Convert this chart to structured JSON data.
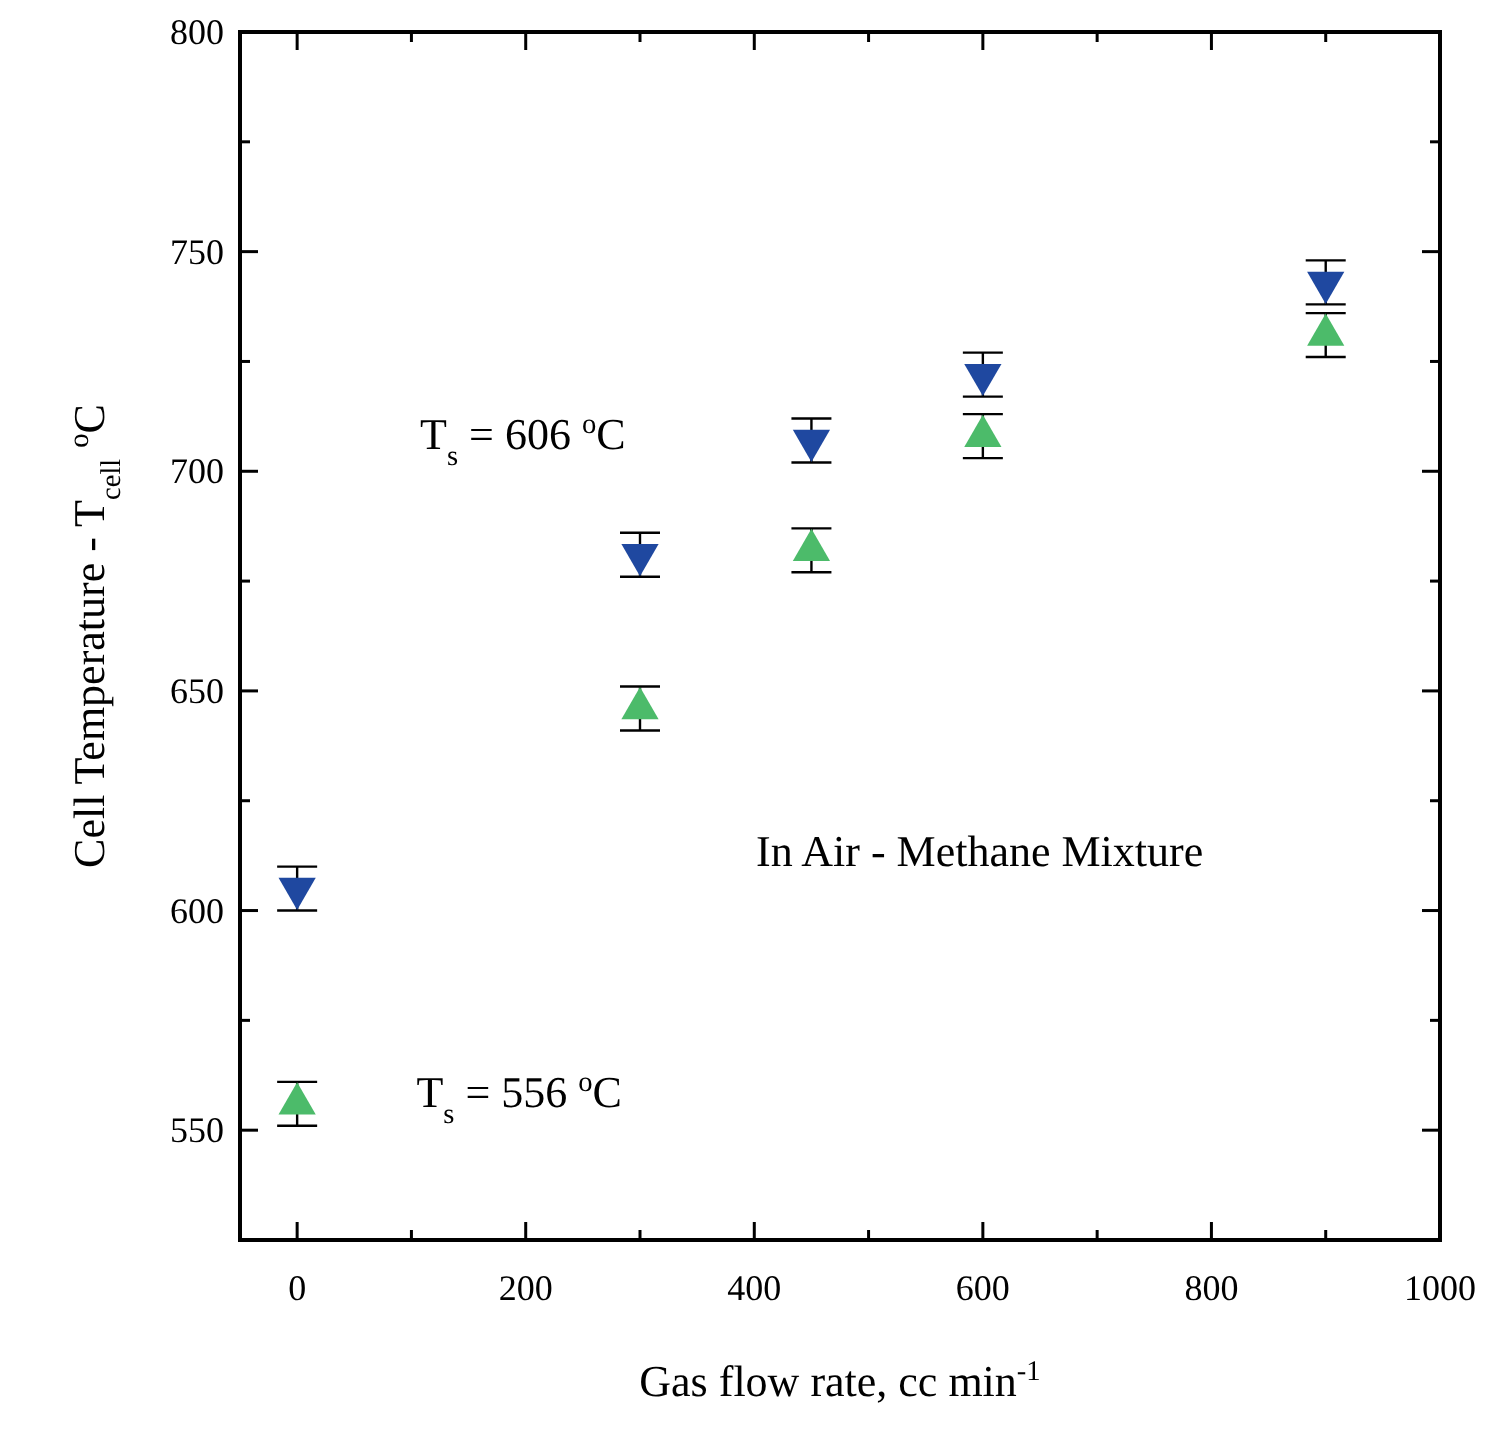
{
  "chart_data": {
    "type": "scatter",
    "xlabel": "Gas flow rate, cc min$^{-1}$",
    "ylabel": "Cell Temperature - T$_{cell}$ $^{o}$C",
    "x": [
      0,
      300,
      450,
      600,
      900
    ],
    "series": [
      {
        "color": "#1f48a0",
        "marker": "triangle-down",
        "values": [
          605,
          681,
          707,
          722,
          743
        ],
        "errors": [
          5,
          5,
          5,
          5,
          5
        ]
      },
      {
        "color": "#4cbb6a",
        "marker": "triangle",
        "values": [
          556,
          646,
          682,
          708,
          731
        ],
        "errors": [
          5,
          5,
          5,
          5,
          5
        ]
      }
    ],
    "xlim": [
      -50,
      1000
    ],
    "xticks": [
      0,
      {
        "value": 100,
        "label": null
      },
      200,
      {
        "value": 300,
        "label": null
      },
      400,
      {
        "value": 500,
        "label": null
      },
      600,
      {
        "value": 700,
        "label": null
      },
      800,
      {
        "value": 900,
        "label": null
      },
      1000
    ],
    "ylim": [
      525,
      800
    ],
    "yticks": [
      550,
      {
        "value": 575,
        "label": null
      },
      600,
      {
        "value": 625,
        "label": null
      },
      650,
      {
        "value": 675,
        "label": null
      },
      700,
      {
        "value": 725,
        "label": null
      },
      750,
      {
        "value": 775,
        "label": null
      },
      800
    ],
    "annotations": [
      "T$_{s}$ = 606 $^{o}$C",
      "In Air - Methane Mixture",
      "T$_{s}$ = 556 $^{o}$C"
    ],
    "grid": false
  }
}
